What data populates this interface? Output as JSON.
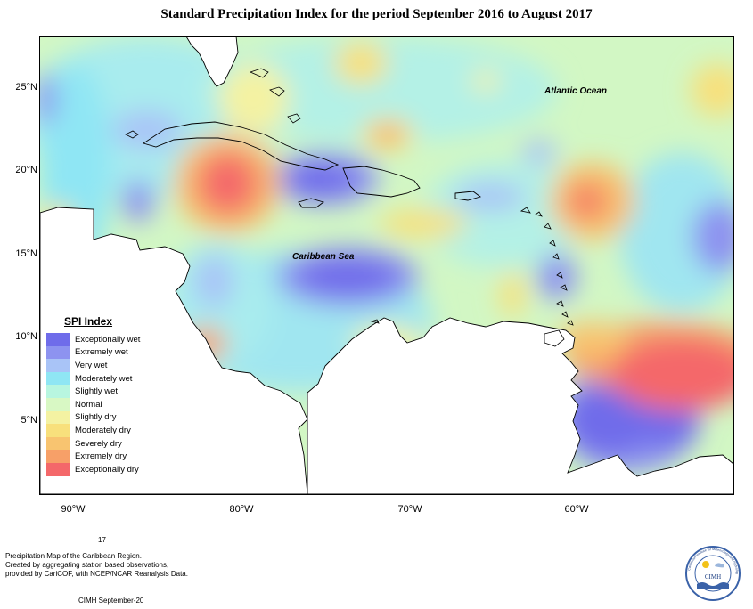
{
  "title": "Standard Precipitation Index for the period September 2016 to August 2017",
  "lat_labels": [
    "25°N",
    "20°N",
    "15°N",
    "10°N",
    "5°N"
  ],
  "lon_labels": [
    "90°W",
    "80°W",
    "70°W",
    "60°W"
  ],
  "map_labels": {
    "atlantic": "Atlantic Ocean",
    "caribbean": "Caribbean Sea"
  },
  "legend": {
    "title": "SPI Index",
    "items": [
      {
        "label": "Exceptionally wet",
        "color": "#6f6cea"
      },
      {
        "label": "Extremely wet",
        "color": "#8d93f0"
      },
      {
        "label": "Very wet",
        "color": "#a9c4f7"
      },
      {
        "label": "Moderately wet",
        "color": "#8fe6f4"
      },
      {
        "label": "Slightly wet",
        "color": "#b8f6e0"
      },
      {
        "label": "Normal",
        "color": "#d8f8c4"
      },
      {
        "label": "Slightly dry",
        "color": "#f4f2a2"
      },
      {
        "label": "Moderately dry",
        "color": "#f8e07c"
      },
      {
        "label": "Severely dry",
        "color": "#f8c470"
      },
      {
        "label": "Extremely dry",
        "color": "#f7a068"
      },
      {
        "label": "Exceptionally dry",
        "color": "#f4686a"
      }
    ]
  },
  "footer": {
    "number": "17",
    "line1": "Precipitation Map of the Caribbean Region.",
    "line2": "Created by aggregating station based observations,",
    "line3": "provided by CariCOF, with NCEP/NCAR Reanalysis Data.",
    "stamp": "CIMH September-20"
  },
  "logo": {
    "text": "CIMH",
    "ring_text": "Caribbean Institute for Meteorology and Hydrology"
  }
}
